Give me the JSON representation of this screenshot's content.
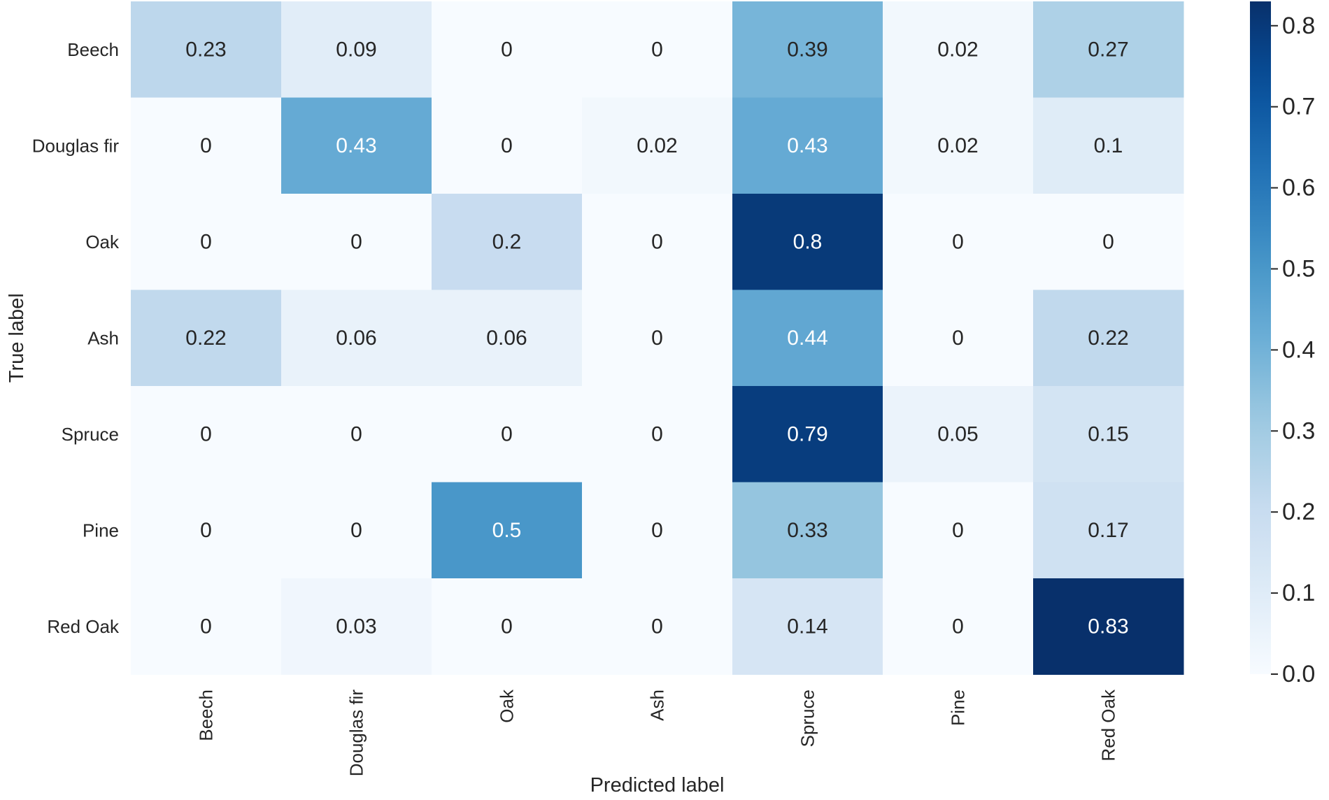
{
  "chart_data": {
    "type": "heatmap",
    "title": "",
    "xlabel": "Predicted label",
    "ylabel": "True label",
    "x_categories": [
      "Beech",
      "Douglas fir",
      "Oak",
      "Ash",
      "Spruce",
      "Pine",
      "Red Oak"
    ],
    "y_categories": [
      "Beech",
      "Douglas fir",
      "Oak",
      "Ash",
      "Spruce",
      "Pine",
      "Red Oak"
    ],
    "values": [
      [
        "0.23",
        "0.09",
        "0",
        "0",
        "0.39",
        "0.02",
        "0.27"
      ],
      [
        "0",
        "0.43",
        "0",
        "0.02",
        "0.43",
        "0.02",
        "0.1"
      ],
      [
        "0",
        "0",
        "0.2",
        "0",
        "0.8",
        "0",
        "0"
      ],
      [
        "0.22",
        "0.06",
        "0.06",
        "0",
        "0.44",
        "0",
        "0.22"
      ],
      [
        "0",
        "0",
        "0",
        "0",
        "0.79",
        "0.05",
        "0.15"
      ],
      [
        "0",
        "0",
        "0.5",
        "0",
        "0.33",
        "0",
        "0.17"
      ],
      [
        "0",
        "0.03",
        "0",
        "0",
        "0.14",
        "0",
        "0.83"
      ]
    ],
    "colorbar": {
      "min": 0,
      "max": 0.83,
      "ticks": [
        "0.0",
        "0.1",
        "0.2",
        "0.3",
        "0.4",
        "0.5",
        "0.6",
        "0.7",
        "0.8"
      ]
    },
    "colormap": "Blues",
    "colors": {
      "text_dark": "#262626",
      "text_light": "#ffffff",
      "tick_color": "#262626"
    }
  }
}
